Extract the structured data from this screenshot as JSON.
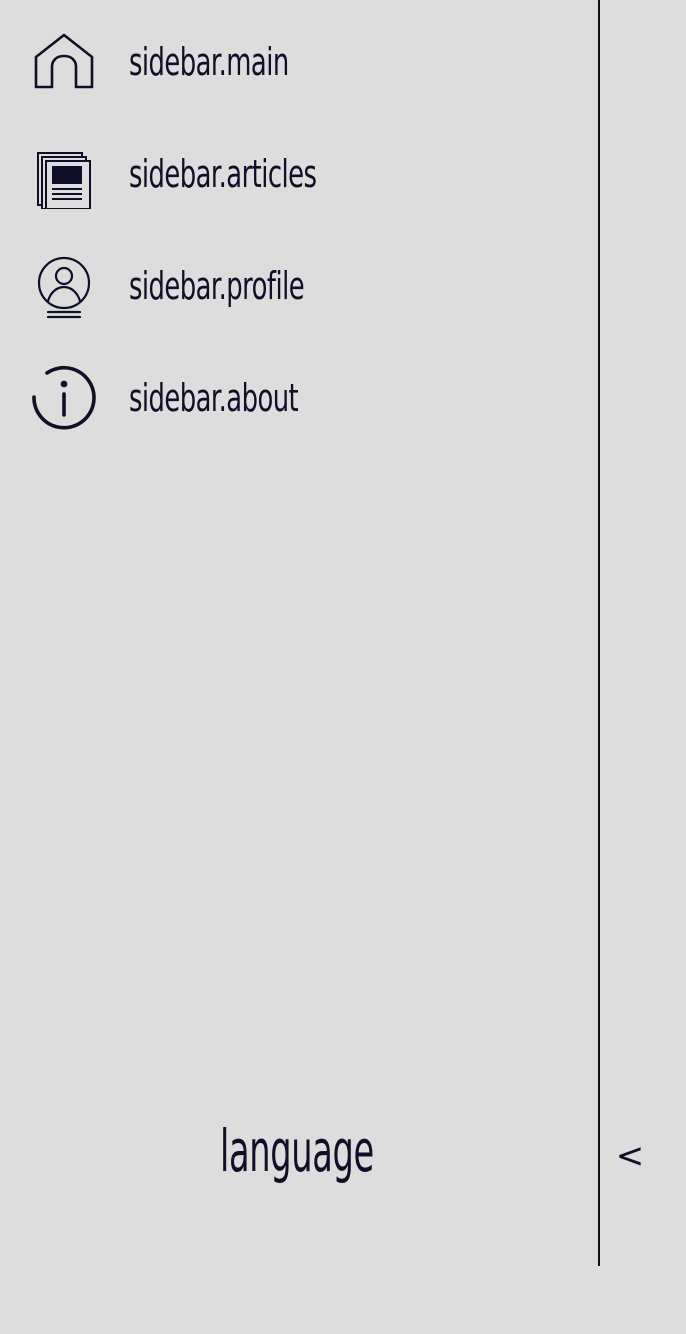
{
  "sidebar": {
    "items": [
      {
        "label": "sidebar.main",
        "icon": "home-icon"
      },
      {
        "label": "sidebar.articles",
        "icon": "articles-icon"
      },
      {
        "label": "sidebar.profile",
        "icon": "profile-icon"
      },
      {
        "label": "sidebar.about",
        "icon": "info-icon"
      }
    ],
    "footer": {
      "language_label": "language"
    },
    "collapse_label": "<"
  },
  "colors": {
    "background": "#dddddd",
    "text": "#0f1027",
    "divider": "#111111"
  }
}
